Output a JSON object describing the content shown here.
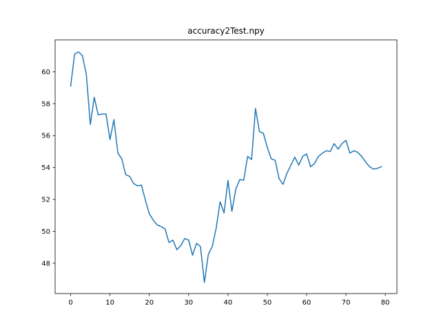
{
  "chart_data": {
    "type": "line",
    "title": "accuracy2Test.npy",
    "xlabel": "",
    "ylabel": "",
    "xlim": [
      -3.95,
      82.95
    ],
    "ylim": [
      46.1,
      62.0
    ],
    "xticks": [
      0,
      10,
      20,
      30,
      40,
      50,
      60,
      70,
      80
    ],
    "yticks": [
      48,
      50,
      52,
      54,
      56,
      58,
      60
    ],
    "grid": false,
    "line_color": "#1f77b4",
    "series": [
      {
        "x": [
          0,
          1,
          2,
          3,
          4,
          5,
          6,
          7,
          8,
          9,
          10,
          11,
          12,
          13,
          14,
          15,
          16,
          17,
          18,
          19,
          20,
          21,
          22,
          23,
          24,
          25,
          26,
          27,
          28,
          29,
          30,
          31,
          32,
          33,
          34,
          35,
          36,
          37,
          38,
          39,
          40,
          41,
          42,
          43,
          44,
          45,
          46,
          47,
          48,
          49,
          50,
          51,
          52,
          53,
          54,
          55,
          56,
          57,
          58,
          59,
          60,
          61,
          62,
          63,
          64,
          65,
          66,
          67,
          68,
          69,
          70,
          71,
          72,
          73,
          74,
          75,
          76,
          77,
          78,
          79
        ],
        "values": [
          59.1,
          61.1,
          61.25,
          61.0,
          59.8,
          56.7,
          58.4,
          57.3,
          57.35,
          57.35,
          55.75,
          57.0,
          54.9,
          54.55,
          53.55,
          53.45,
          53.0,
          52.85,
          52.9,
          51.95,
          51.1,
          50.7,
          50.4,
          50.3,
          50.15,
          49.3,
          49.45,
          48.85,
          49.1,
          49.55,
          49.45,
          48.5,
          49.25,
          49.05,
          46.8,
          48.55,
          49.05,
          50.2,
          51.85,
          51.15,
          53.2,
          51.25,
          52.65,
          53.25,
          53.2,
          54.7,
          54.5,
          57.7,
          56.25,
          56.15,
          55.25,
          54.55,
          54.45,
          53.3,
          52.95,
          53.65,
          54.15,
          54.65,
          54.15,
          54.7,
          54.85,
          54.05,
          54.25,
          54.7,
          54.9,
          55.05,
          55.0,
          55.5,
          55.15,
          55.5,
          55.7,
          54.9,
          55.05,
          54.95,
          54.7,
          54.35,
          54.05,
          53.9,
          53.95,
          54.05
        ]
      }
    ]
  }
}
